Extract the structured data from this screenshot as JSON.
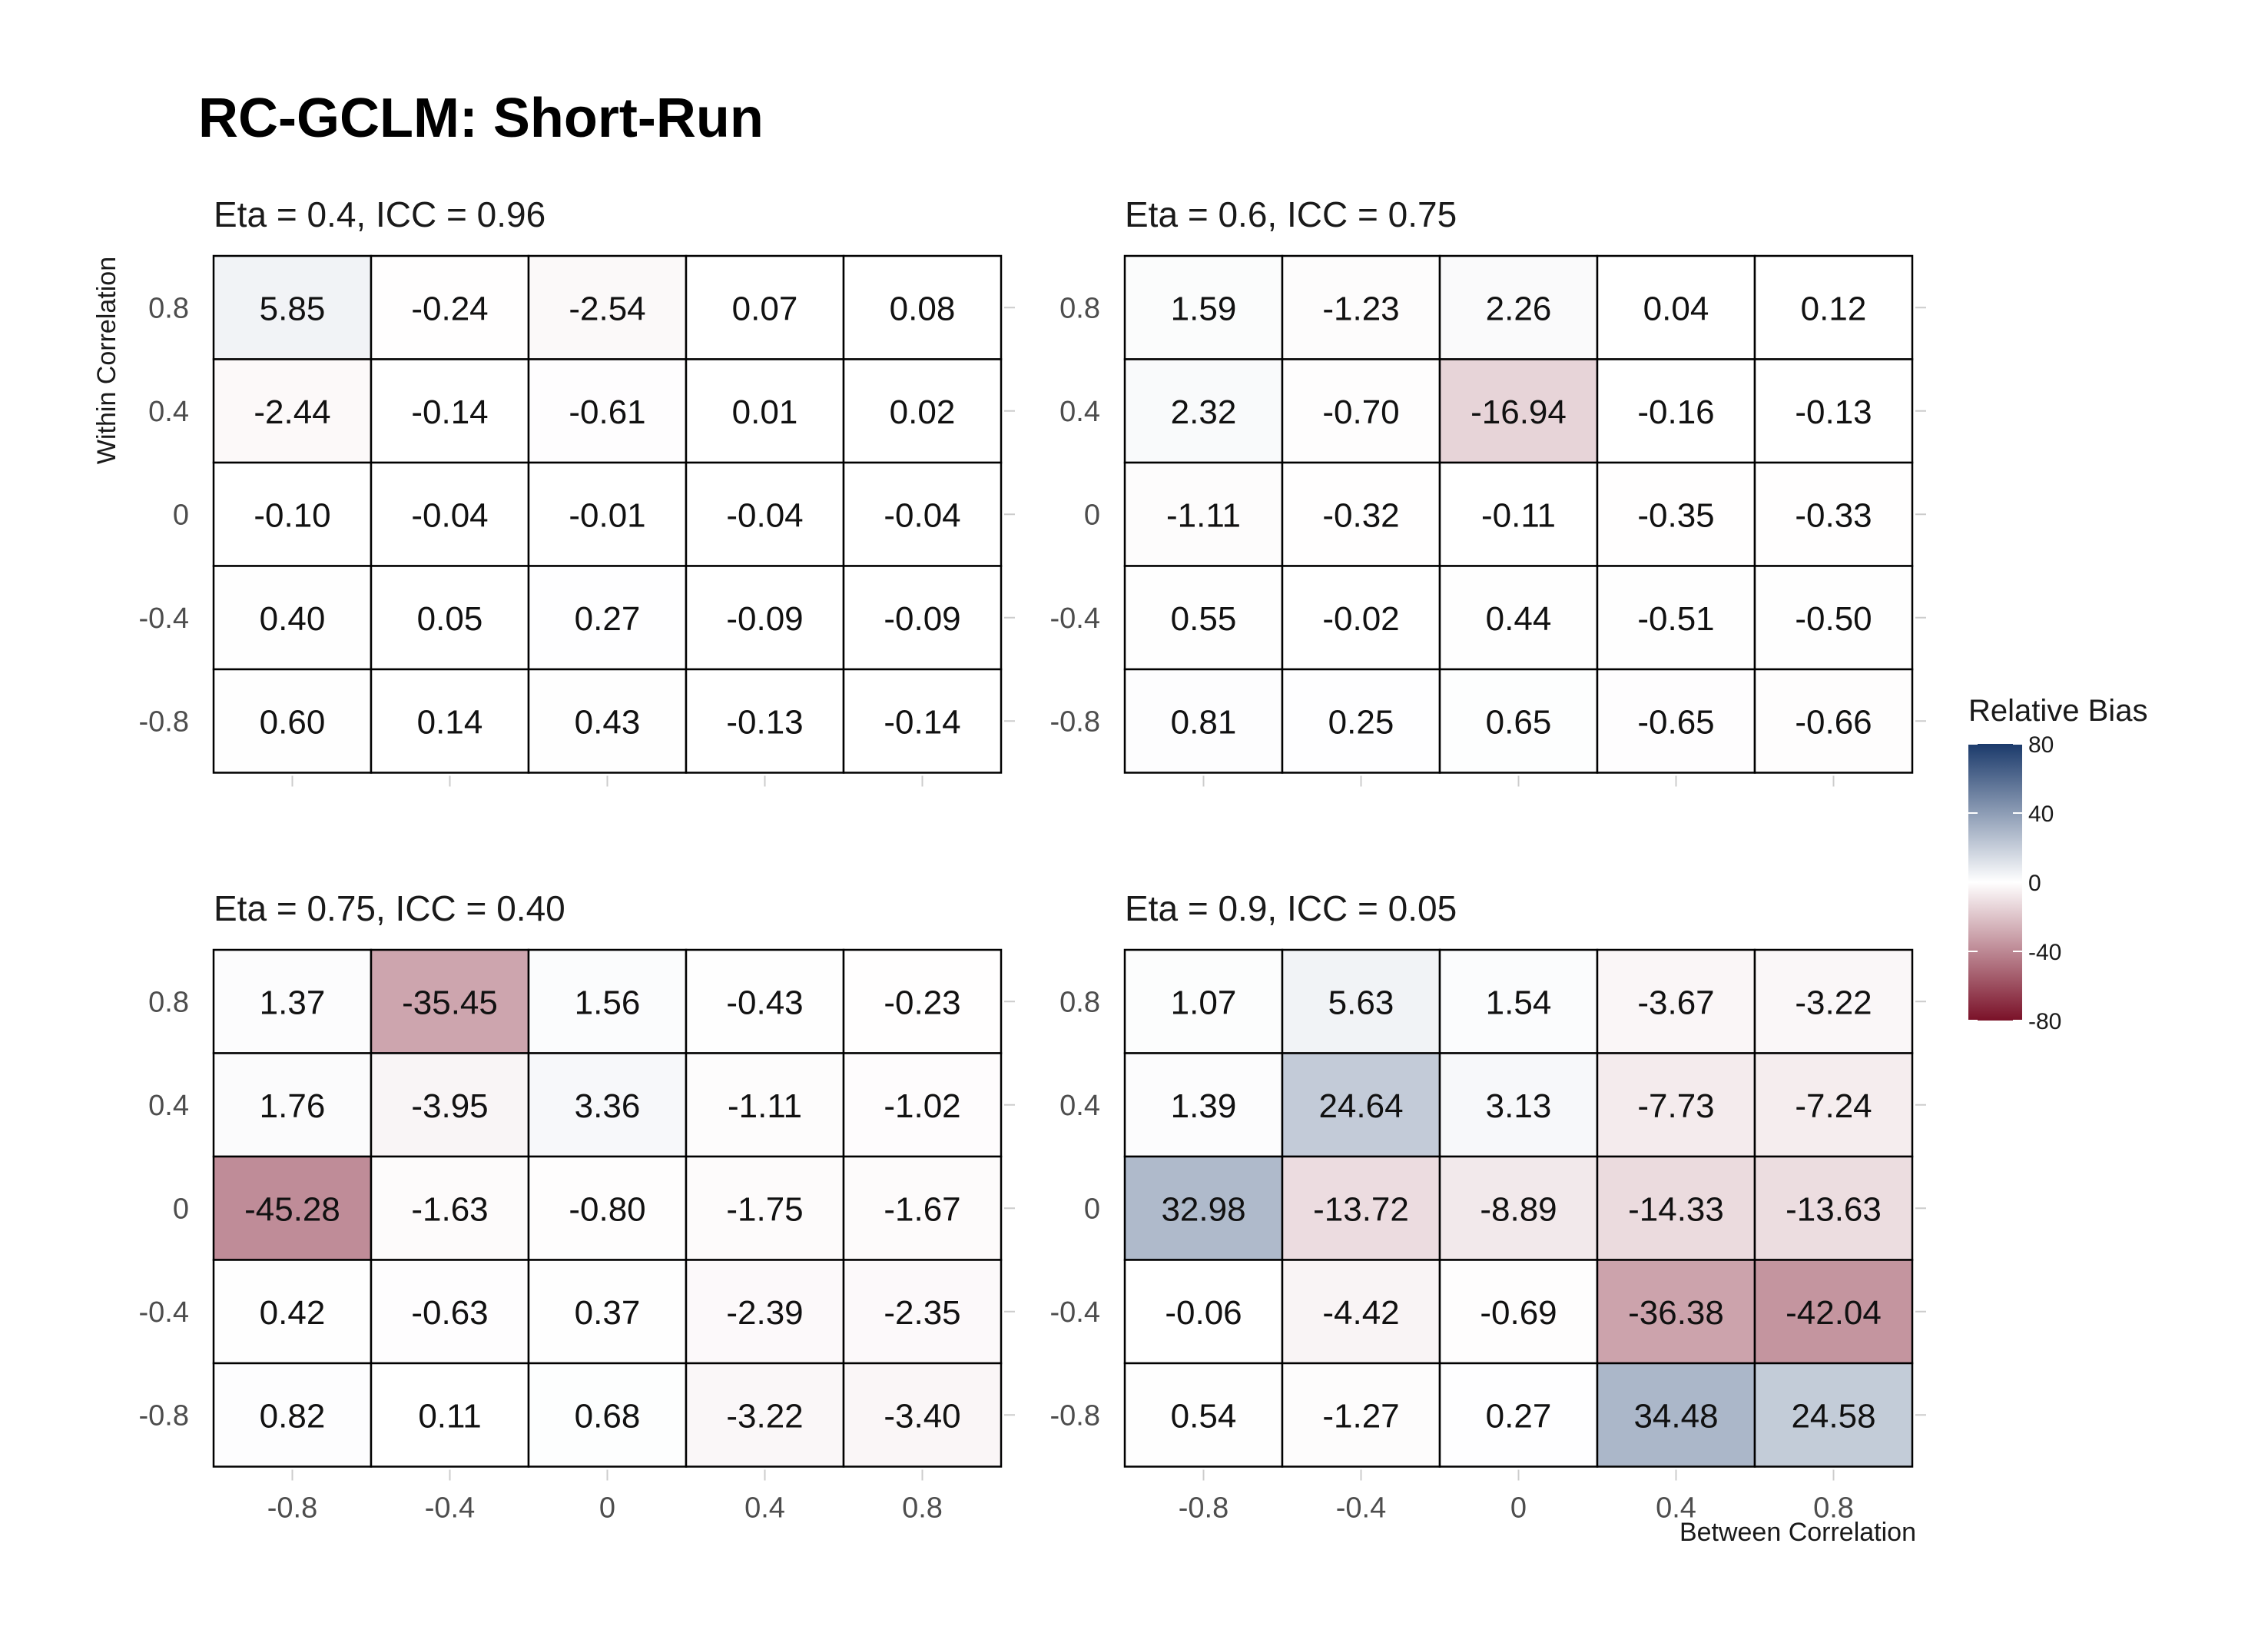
{
  "chart_data": {
    "type": "heatmap",
    "title": "RC-GCLM: Short-Run",
    "xlabel": "Between Correlation",
    "ylabel": "Within Correlation",
    "x_ticks": [
      "-0.8",
      "-0.4",
      "0",
      "0.4",
      "0.8"
    ],
    "y_ticks": [
      "0.8",
      "0.4",
      "0",
      "-0.4",
      "-0.8"
    ],
    "legend": {
      "title": "Relative Bias",
      "ticks": [
        "80",
        "40",
        "0",
        "-40",
        "-80"
      ],
      "range": [
        -80,
        80
      ],
      "colors": {
        "high": "#1B3A6B",
        "mid": "#FFFFFF",
        "low": "#7A1128"
      },
      "placement": "right"
    },
    "grid": false,
    "panels": [
      {
        "title": "Eta = 0.4, ICC = 0.96",
        "values": [
          [
            5.85,
            -0.24,
            -2.54,
            0.07,
            0.08
          ],
          [
            -2.44,
            -0.14,
            -0.61,
            0.01,
            0.02
          ],
          [
            -0.1,
            -0.04,
            -0.01,
            -0.04,
            -0.04
          ],
          [
            0.4,
            0.05,
            0.27,
            -0.09,
            -0.09
          ],
          [
            0.6,
            0.14,
            0.43,
            -0.13,
            -0.14
          ]
        ],
        "labels": [
          [
            "5.85",
            "-0.24",
            "-2.54",
            "0.07",
            "0.08"
          ],
          [
            "-2.44",
            "-0.14",
            "-0.61",
            "0.01",
            "0.02"
          ],
          [
            "-0.10",
            "-0.04",
            "-0.01",
            "-0.04",
            "-0.04"
          ],
          [
            "0.40",
            "0.05",
            "0.27",
            "-0.09",
            "-0.09"
          ],
          [
            "0.60",
            "0.14",
            "0.43",
            "-0.13",
            "-0.14"
          ]
        ]
      },
      {
        "title": "Eta = 0.6, ICC = 0.75",
        "values": [
          [
            1.59,
            -1.23,
            2.26,
            0.04,
            0.12
          ],
          [
            2.32,
            -0.7,
            -16.94,
            -0.16,
            -0.13
          ],
          [
            -1.11,
            -0.32,
            -0.11,
            -0.35,
            -0.33
          ],
          [
            0.55,
            -0.02,
            0.44,
            -0.51,
            -0.5
          ],
          [
            0.81,
            0.25,
            0.65,
            -0.65,
            -0.66
          ]
        ],
        "labels": [
          [
            "1.59",
            "-1.23",
            "2.26",
            "0.04",
            "0.12"
          ],
          [
            "2.32",
            "-0.70",
            "-16.94",
            "-0.16",
            "-0.13"
          ],
          [
            "-1.11",
            "-0.32",
            "-0.11",
            "-0.35",
            "-0.33"
          ],
          [
            "0.55",
            "-0.02",
            "0.44",
            "-0.51",
            "-0.50"
          ],
          [
            "0.81",
            "0.25",
            "0.65",
            "-0.65",
            "-0.66"
          ]
        ]
      },
      {
        "title": "Eta = 0.75, ICC = 0.40",
        "values": [
          [
            1.37,
            -35.45,
            1.56,
            -0.43,
            -0.23
          ],
          [
            1.76,
            -3.95,
            3.36,
            -1.11,
            -1.02
          ],
          [
            -45.28,
            -1.63,
            -0.8,
            -1.75,
            -1.67
          ],
          [
            0.42,
            -0.63,
            0.37,
            -2.39,
            -2.35
          ],
          [
            0.82,
            0.11,
            0.68,
            -3.22,
            -3.4
          ]
        ],
        "labels": [
          [
            "1.37",
            "-35.45",
            "1.56",
            "-0.43",
            "-0.23"
          ],
          [
            "1.76",
            "-3.95",
            "3.36",
            "-1.11",
            "-1.02"
          ],
          [
            "-45.28",
            "-1.63",
            "-0.80",
            "-1.75",
            "-1.67"
          ],
          [
            "0.42",
            "-0.63",
            "0.37",
            "-2.39",
            "-2.35"
          ],
          [
            "0.82",
            "0.11",
            "0.68",
            "-3.22",
            "-3.40"
          ]
        ]
      },
      {
        "title": "Eta = 0.9, ICC = 0.05",
        "values": [
          [
            1.07,
            5.63,
            1.54,
            -3.67,
            -3.22
          ],
          [
            1.39,
            24.64,
            3.13,
            -7.73,
            -7.24
          ],
          [
            32.98,
            -13.72,
            -8.89,
            -14.33,
            -13.63
          ],
          [
            -0.06,
            -4.42,
            -0.69,
            -36.38,
            -42.04
          ],
          [
            0.54,
            -1.27,
            0.27,
            34.48,
            24.58
          ]
        ],
        "labels": [
          [
            "1.07",
            "5.63",
            "1.54",
            "-3.67",
            "-3.22"
          ],
          [
            "1.39",
            "24.64",
            "3.13",
            "-7.73",
            "-7.24"
          ],
          [
            "32.98",
            "-13.72",
            "-8.89",
            "-14.33",
            "-13.63"
          ],
          [
            "-0.06",
            "-4.42",
            "-0.69",
            "-36.38",
            "-42.04"
          ],
          [
            "0.54",
            "-1.27",
            "0.27",
            "34.48",
            "24.58"
          ]
        ]
      }
    ]
  }
}
